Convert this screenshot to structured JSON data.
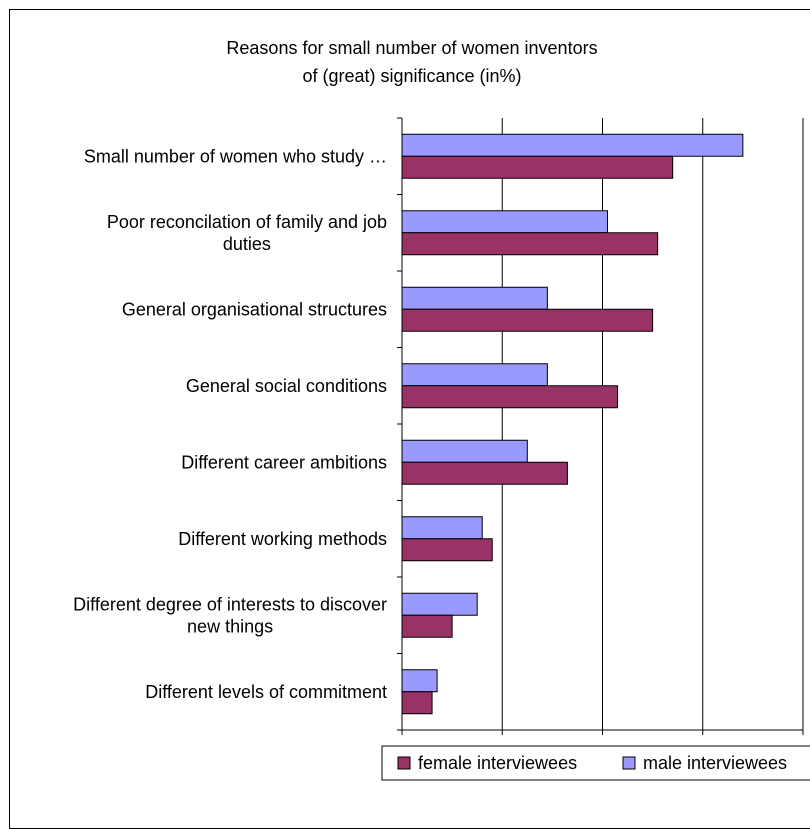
{
  "chart_data": {
    "type": "bar",
    "orientation": "horizontal",
    "title_lines": [
      "Reasons for small number of women inventors",
      "of (great) significance (in%)"
    ],
    "categories": [
      [
        "Small number of women who study …"
      ],
      [
        "Poor reconcilation of family and job",
        "duties"
      ],
      [
        "General organisational structures"
      ],
      [
        "General social conditions"
      ],
      [
        "Different career ambitions"
      ],
      [
        "Different working methods"
      ],
      [
        "Different degree of interests to discover",
        "new things"
      ],
      [
        "Different levels of commitment"
      ]
    ],
    "series": [
      {
        "name": "female interviewees",
        "color": "#993366",
        "values": [
          54,
          51,
          50,
          43,
          33,
          18,
          10,
          6
        ]
      },
      {
        "name": "male interviewees",
        "color": "#9999ff",
        "values": [
          68,
          41,
          29,
          29,
          25,
          16,
          15,
          7
        ]
      }
    ],
    "x_ticks": [
      0,
      20,
      40,
      60,
      80
    ],
    "xlim": [
      0,
      80
    ],
    "grid": true,
    "legend_position": "bottom"
  }
}
